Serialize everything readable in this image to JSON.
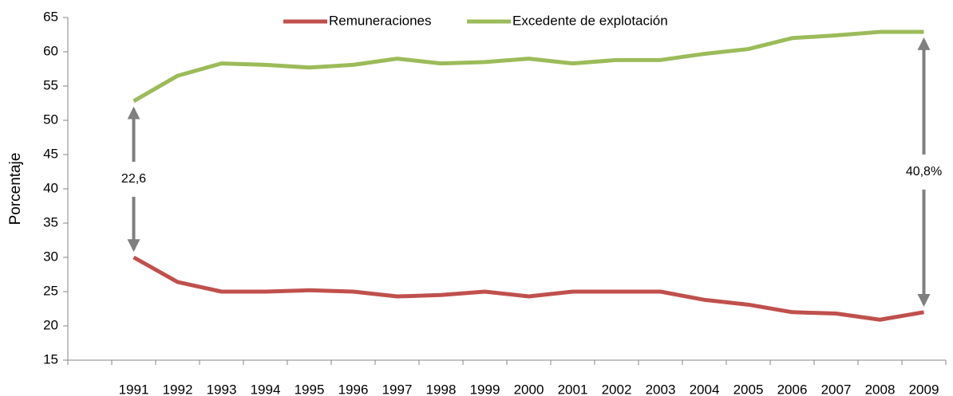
{
  "chart_data": {
    "type": "line",
    "categories": [
      null,
      "1991",
      "1992",
      "1993",
      "1994",
      "1995",
      "1996",
      "1997",
      "1998",
      "1999",
      "2000",
      "2001",
      "2002",
      "2003",
      "2004",
      "2005",
      "2006",
      "2007",
      "2008",
      "2009"
    ],
    "series": [
      {
        "name": "Remuneraciones",
        "color": "#c0504d",
        "values": [
          null,
          30,
          26.4,
          25,
          25,
          25.2,
          25,
          24.3,
          24.5,
          25,
          24.3,
          25,
          25,
          25,
          23.8,
          23.1,
          22,
          21.8,
          20.9,
          22
        ]
      },
      {
        "name": "Excedente de explotación",
        "color": "#9bbb59",
        "values": [
          null,
          52.8,
          56.5,
          58.3,
          58.1,
          57.7,
          58.1,
          59,
          58.3,
          58.5,
          59,
          58.3,
          58.8,
          58.8,
          59.7,
          60.4,
          62,
          62.4,
          62.9,
          62.9
        ]
      }
    ],
    "ylabel": "Porcentaje",
    "ylim": [
      15,
      65
    ],
    "yticks": [
      15,
      20,
      25,
      30,
      35,
      40,
      45,
      50,
      55,
      60,
      65
    ],
    "annotations": [
      "22,6",
      "40,8%"
    ],
    "legend": "top"
  }
}
